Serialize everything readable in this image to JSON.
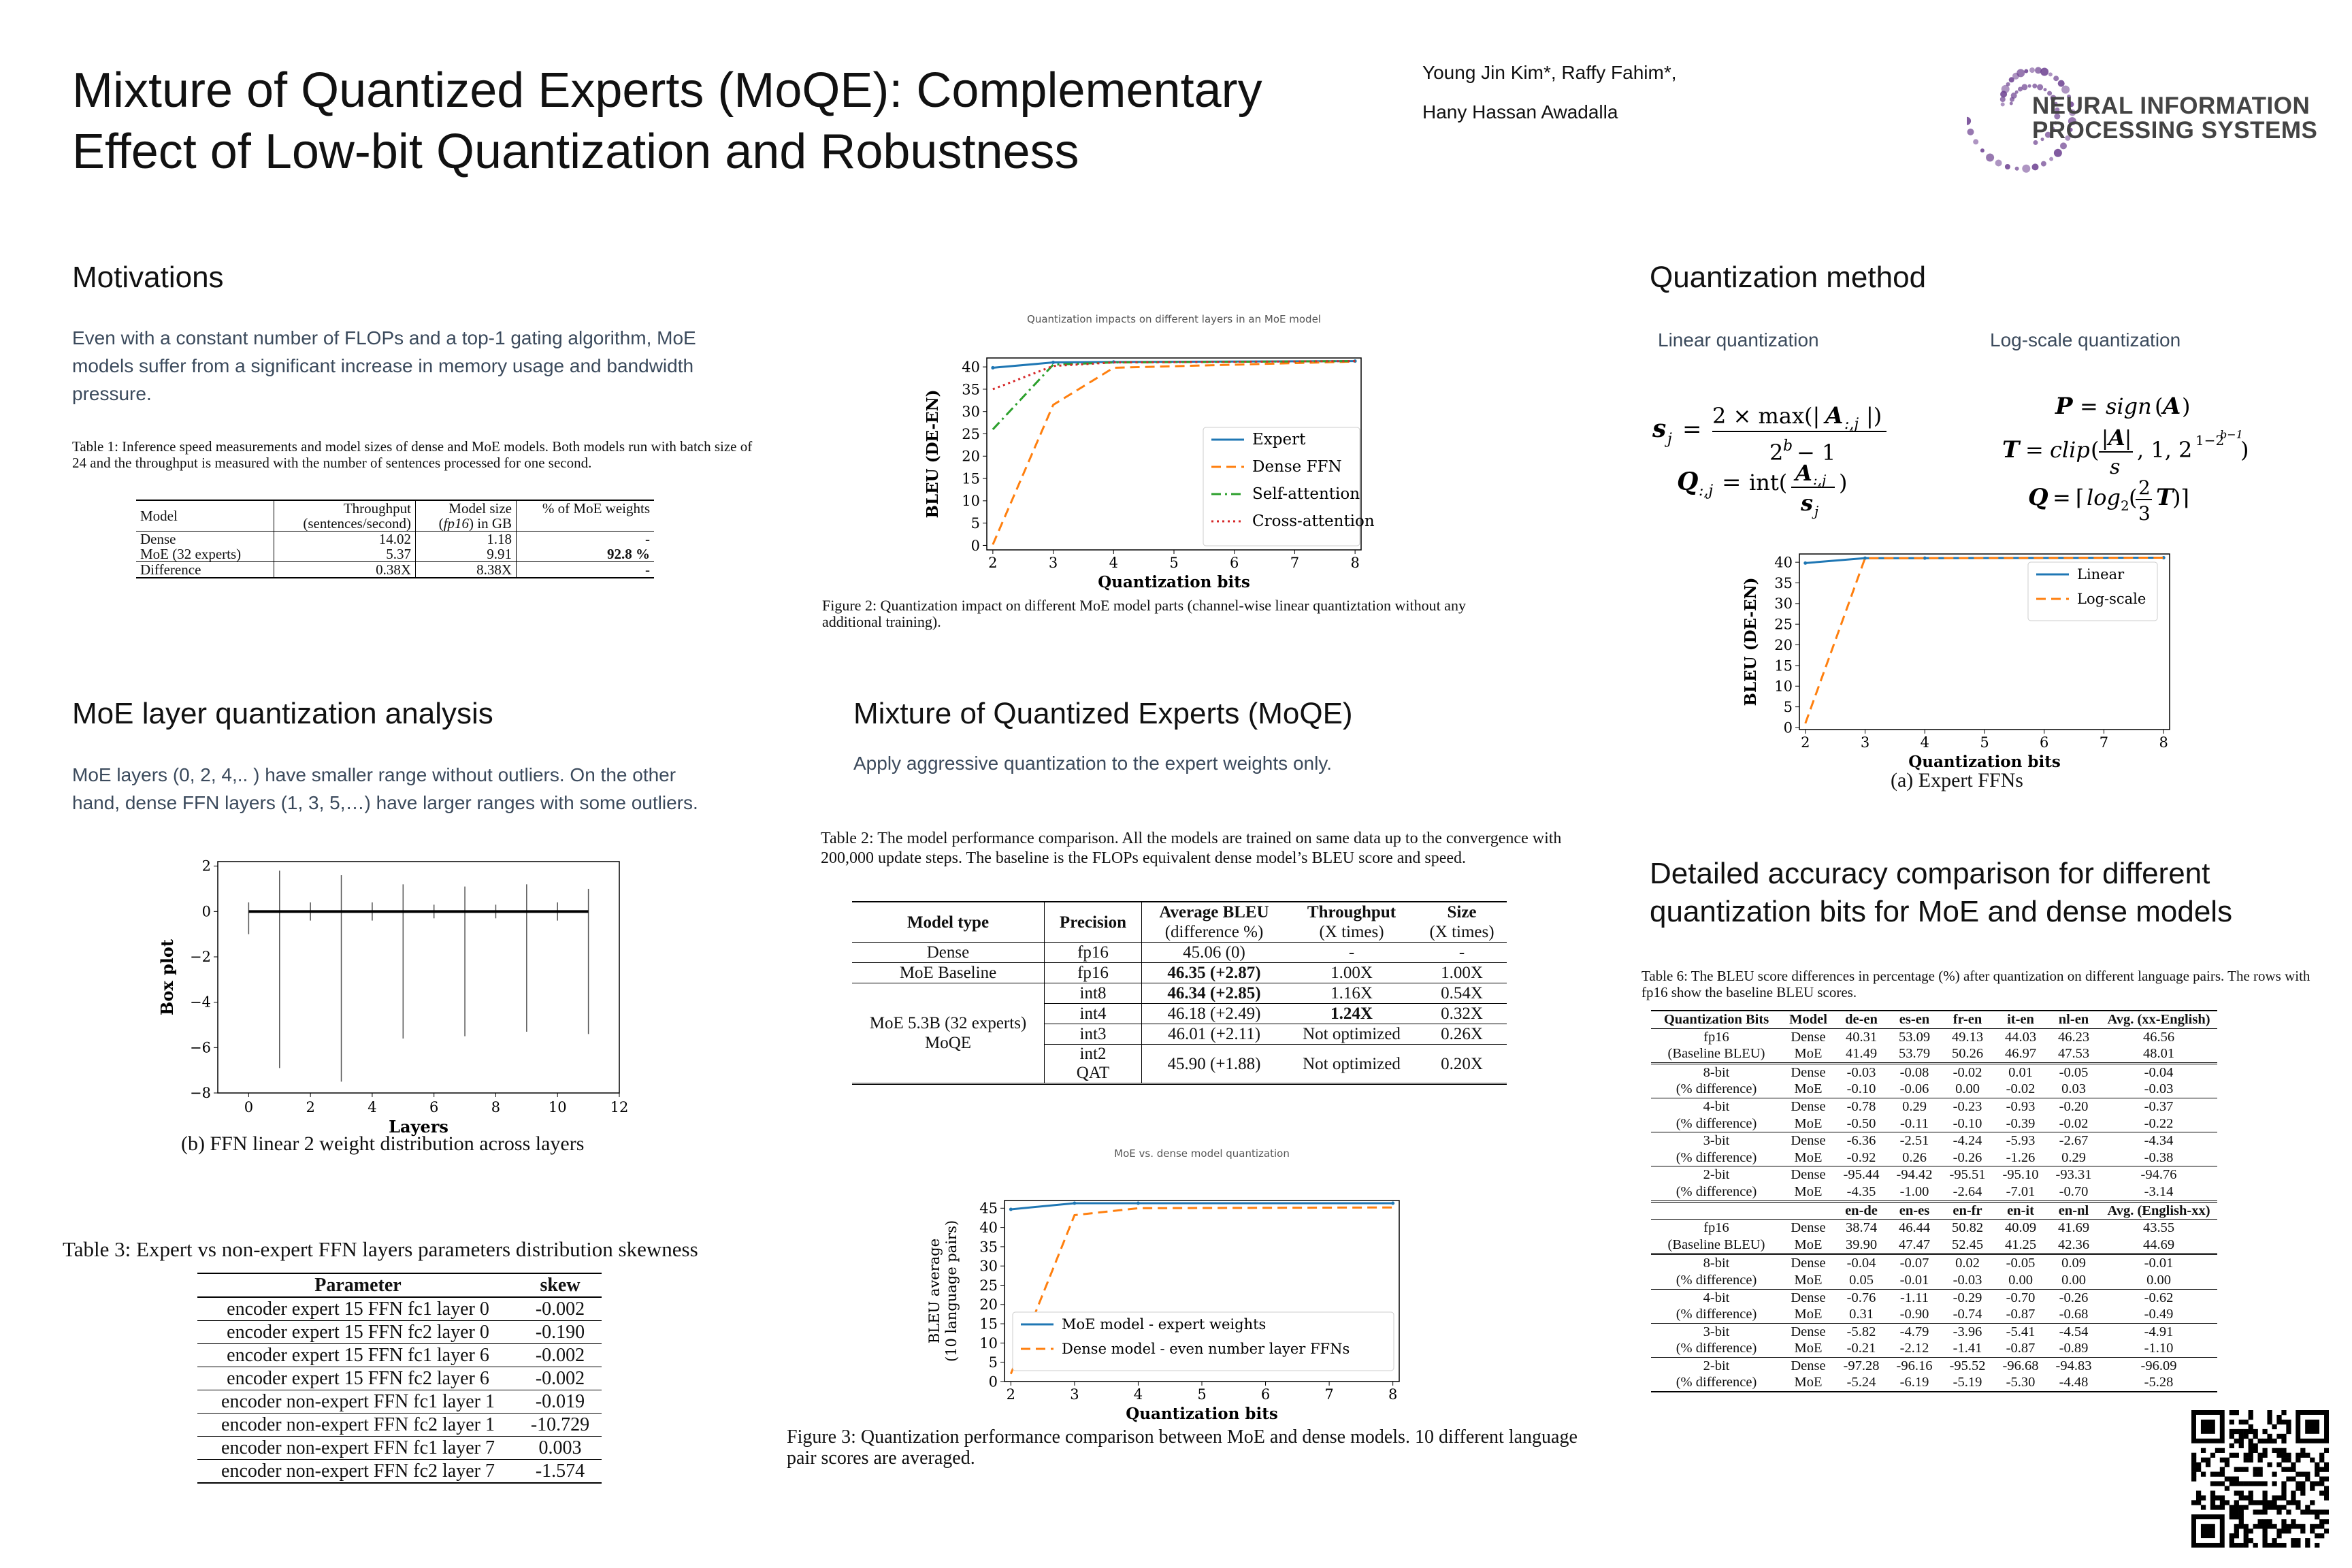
{
  "header": {
    "title_line1": "Mixture of Quantized Experts (MoQE): Complementary",
    "title_line2": "Effect of Low-bit Quantization and Robustness",
    "authors_line1": "Young Jin Kim*, Raffy Fahim*,",
    "authors_line2": "Hany Hassan Awadalla",
    "logo_line1": "NEURAL INFORMATION",
    "logo_line2": "PROCESSING SYSTEMS"
  },
  "motivations": {
    "heading": "Motivations",
    "text": "Even with a constant number of FLOPs and a top-1 gating algorithm, MoE models suffer from a significant increase in memory usage and bandwidth pressure.",
    "table_caption": "Table 1: Inference speed measurements and model sizes of dense and MoE models. Both models run with batch size of 24 and the throughput is measured with the number of sentences processed for one second.",
    "table": {
      "h_model": "Model",
      "h_thru1": "Throughput",
      "h_thru2": "(sentences/second)",
      "h_size1": "Model size",
      "h_size2_i": "fp16",
      "h_size2_rest": ") in GB",
      "h_pct": "% of MoE weights",
      "rows": [
        [
          "Dense",
          "14.02",
          "1.18",
          "-"
        ],
        [
          "MoE (32 experts)",
          "5.37",
          "9.91",
          "92.8 %"
        ],
        [
          "Difference",
          "0.38X",
          "8.38X",
          "-"
        ]
      ]
    }
  },
  "figure2": {
    "title": "Quantization  impacts  on different layers in an MoE model",
    "caption": "Figure 2: Quantization impact on different MoE model parts (channel-wise linear quantiztation without any additional training)."
  },
  "quant_method": {
    "heading": "Quantization method",
    "linear_label": "Linear quantization",
    "log_label": "Log-scale quantization",
    "fig_caption": "(a) Expert FFNs"
  },
  "moe_layer": {
    "heading": "MoE layer quantization analysis",
    "text": "MoE layers (0, 2, 4,.. ) have smaller range without outliers. On the other hand, dense FFN layers (1, 3, 5,…) have larger ranges with some outliers.",
    "fig_caption": "(b) FFN linear 2 weight distribution across layers"
  },
  "moqe": {
    "heading": "Mixture of Quantized Experts (MoQE)",
    "text": "Apply aggressive quantization to the expert weights only.",
    "table_caption": "Table 2:  The model performance comparison.  All the models are trained on same data up to the convergence with 200,000 update steps. The baseline is the FLOPs equivalent dense model’s BLEU score and speed.",
    "table": {
      "h_type": "Model type",
      "h_prec": "Precision",
      "h_bleu1": "Average BLEU",
      "h_bleu2": "(difference %)",
      "h_thru1": "Throughput",
      "h_thru2": "(X times)",
      "h_size1": "Size",
      "h_size2": "(X times)",
      "dense": [
        "Dense",
        "fp16",
        "45.06 (0)",
        "-",
        "-"
      ],
      "baseline": [
        "MoE Baseline",
        "fp16",
        "46.35 (+2.87)",
        "1.00X",
        "1.00X"
      ],
      "moqe_label1": "MoE 5.3B (32 experts)",
      "moqe_label2": "MoQE",
      "moqe_rows": [
        [
          "int8",
          "46.34 (+2.85)",
          "1.16X",
          "0.54X"
        ],
        [
          "int4",
          "46.18 (+2.49)",
          "1.24X",
          "0.32X"
        ],
        [
          "int3",
          "46.01 (+2.11)",
          "Not optimized",
          "0.26X"
        ]
      ],
      "int2_1": "int2",
      "int2_2": "QAT",
      "int2_bleu": "45.90 (+1.88)",
      "int2_thru": "Not optimized",
      "int2_size": "0.20X"
    }
  },
  "figure3": {
    "title": "MoE vs.  dense  model  quantization",
    "caption": "Figure 3:  Quantization performance comparison between MoE and dense models.  10 different language pair scores are averaged."
  },
  "table3": {
    "caption": "Table 3: Expert vs non-expert FFN layers parameters distribution skewness",
    "h_param": "Parameter",
    "h_skew": "skew",
    "rows": [
      [
        "encoder expert 15 FFN fc1 layer 0",
        "-0.002"
      ],
      [
        "encoder expert 15 FFN fc2 layer 0",
        "-0.190"
      ],
      [
        "encoder expert 15 FFN fc1 layer 6",
        "-0.002"
      ],
      [
        "encoder expert 15 FFN fc2 layer 6",
        "-0.002"
      ],
      [
        "encoder non-expert FFN fc1 layer 1",
        "-0.019"
      ],
      [
        "encoder non-expert FFN fc2 layer 1",
        "-10.729"
      ],
      [
        "encoder non-expert FFN fc1 layer 7",
        "0.003"
      ],
      [
        "encoder non-expert FFN fc2 layer 7",
        "-1.574"
      ]
    ]
  },
  "detailed": {
    "heading1": "Detailed accuracy comparison for different",
    "heading2": "quantization bits for MoE and dense models",
    "table_caption": "Table 6: The BLEU score differences in percentage (%) after quantization on different language pairs. The rows with fp16 show the baseline BLEU scores.",
    "header1": [
      "Quantization Bits",
      "Model",
      "de-en",
      "es-en",
      "fr-en",
      "it-en",
      "nl-en",
      "Avg. (xx-English)"
    ],
    "group1": [
      [
        [
          "fp16",
          "Dense",
          "40.31",
          "53.09",
          "49.13",
          "44.03",
          "46.23",
          "46.56"
        ],
        [
          "(Baseline BLEU)",
          "MoE",
          "41.49",
          "53.79",
          "50.26",
          "46.97",
          "47.53",
          "48.01"
        ]
      ],
      [
        [
          "8-bit",
          "Dense",
          "-0.03",
          "-0.08",
          "-0.02",
          "0.01",
          "-0.05",
          "-0.04"
        ],
        [
          "(% difference)",
          "MoE",
          "-0.10",
          "-0.06",
          "0.00",
          "-0.02",
          "0.03",
          "-0.03"
        ]
      ],
      [
        [
          "4-bit",
          "Dense",
          "-0.78",
          "0.29",
          "-0.23",
          "-0.93",
          "-0.20",
          "-0.37"
        ],
        [
          "(% difference)",
          "MoE",
          "-0.50",
          "-0.11",
          "-0.10",
          "-0.39",
          "-0.02",
          "-0.22"
        ]
      ],
      [
        [
          "3-bit",
          "Dense",
          "-6.36",
          "-2.51",
          "-4.24",
          "-5.93",
          "-2.67",
          "-4.34"
        ],
        [
          "(% difference)",
          "MoE",
          "-0.92",
          "0.26",
          "-0.26",
          "-1.26",
          "0.29",
          "-0.38"
        ]
      ],
      [
        [
          "2-bit",
          "Dense",
          "-95.44",
          "-94.42",
          "-95.51",
          "-95.10",
          "-93.31",
          "-94.76"
        ],
        [
          "(% difference)",
          "MoE",
          "-4.35",
          "-1.00",
          "-2.64",
          "-7.01",
          "-0.70",
          "-3.14"
        ]
      ]
    ],
    "header2": [
      "",
      "",
      "en-de",
      "en-es",
      "en-fr",
      "en-it",
      "en-nl",
      "Avg. (English-xx)"
    ],
    "group2": [
      [
        [
          "fp16",
          "Dense",
          "38.74",
          "46.44",
          "50.82",
          "40.09",
          "41.69",
          "43.55"
        ],
        [
          "(Baseline BLEU)",
          "MoE",
          "39.90",
          "47.47",
          "52.45",
          "41.25",
          "42.36",
          "44.69"
        ]
      ],
      [
        [
          "8-bit",
          "Dense",
          "-0.04",
          "-0.07",
          "0.02",
          "-0.05",
          "0.09",
          "-0.01"
        ],
        [
          "(% difference)",
          "MoE",
          "0.05",
          "-0.01",
          "-0.03",
          "0.00",
          "0.00",
          "0.00"
        ]
      ],
      [
        [
          "4-bit",
          "Dense",
          "-0.76",
          "-1.11",
          "-0.29",
          "-0.70",
          "-0.26",
          "-0.62"
        ],
        [
          "(% difference)",
          "MoE",
          "0.31",
          "-0.90",
          "-0.74",
          "-0.87",
          "-0.68",
          "-0.49"
        ]
      ],
      [
        [
          "3-bit",
          "Dense",
          "-5.82",
          "-4.79",
          "-3.96",
          "-5.41",
          "-4.54",
          "-4.91"
        ],
        [
          "(% difference)",
          "MoE",
          "-0.21",
          "-2.12",
          "-1.41",
          "-0.87",
          "-0.89",
          "-1.10"
        ]
      ],
      [
        [
          "2-bit",
          "Dense",
          "-97.28",
          "-96.16",
          "-95.52",
          "-96.68",
          "-94.83",
          "-96.09"
        ],
        [
          "(% difference)",
          "MoE",
          "-5.24",
          "-6.19",
          "-5.19",
          "-5.30",
          "-4.48",
          "-5.28"
        ]
      ]
    ]
  },
  "chart_data": [
    {
      "type": "line",
      "title": "Quantization  impacts  on different layers in an MoE model",
      "xlabel": "Quantization bits",
      "ylabel": "BLEU  (DE-EN)",
      "x": [
        2,
        3,
        4,
        8
      ],
      "xlim": [
        1.9,
        8.1
      ],
      "ylim": [
        -1,
        42
      ],
      "xticks": [
        2,
        3,
        4,
        5,
        6,
        7,
        8
      ],
      "yticks": [
        0,
        5,
        10,
        15,
        20,
        25,
        30,
        35,
        40
      ],
      "legend": "center-right",
      "series": [
        {
          "name": "Expert",
          "values": [
            39.8,
            41.0,
            41.1,
            41.3
          ],
          "color": "#1f77b4",
          "dash": "solid"
        },
        {
          "name": "Dense FFN",
          "values": [
            0.2,
            31.5,
            39.8,
            41.2
          ],
          "color": "#ff7f0e",
          "dash": "dashed"
        },
        {
          "name": "Self-attention",
          "values": [
            26.0,
            40.5,
            41.0,
            41.3
          ],
          "color": "#2ca02c",
          "dash": "dashdot"
        },
        {
          "name": "Cross-attention",
          "values": [
            35.0,
            40.2,
            41.0,
            41.3
          ],
          "color": "#d62728",
          "dash": "dotted"
        }
      ]
    },
    {
      "type": "line",
      "xlabel": "Quantization bits",
      "ylabel": "BLEU  (DE-EN)",
      "x": [
        2,
        3,
        4,
        8
      ],
      "xlim": [
        1.9,
        8.1
      ],
      "ylim": [
        -0.5,
        42
      ],
      "xticks": [
        2,
        3,
        4,
        5,
        6,
        7,
        8
      ],
      "yticks": [
        0,
        5,
        10,
        15,
        20,
        25,
        30,
        35,
        40
      ],
      "legend": "top-right",
      "series": [
        {
          "name": "Linear",
          "values": [
            39.8,
            41.0,
            41.0,
            41.1
          ],
          "color": "#1f77b4",
          "dash": "solid"
        },
        {
          "name": "Log-scale",
          "values": [
            1.0,
            41.0,
            41.0,
            41.1
          ],
          "color": "#ff7f0e",
          "dash": "dashed"
        }
      ]
    },
    {
      "type": "line",
      "title": "MoE vs.  dense  model  quantization",
      "xlabel": "Quantization bits",
      "ylabel": "BLEU  average (10 language pairs)",
      "x": [
        2,
        3,
        4,
        8
      ],
      "xlim": [
        1.9,
        8.1
      ],
      "ylim": [
        0,
        47
      ],
      "xticks": [
        2,
        3,
        4,
        5,
        6,
        7,
        8
      ],
      "yticks": [
        0,
        5,
        10,
        15,
        20,
        25,
        30,
        35,
        40,
        45
      ],
      "legend": "bottom-left",
      "series": [
        {
          "name": "MoE model - expert weights",
          "values": [
            44.7,
            46.3,
            46.3,
            46.3
          ],
          "color": "#1f77b4",
          "dash": "solid"
        },
        {
          "name": "Dense model - even number layer FFNs",
          "values": [
            2.0,
            43.2,
            45.0,
            45.2
          ],
          "color": "#ff7f0e",
          "dash": "dashed"
        }
      ]
    },
    {
      "type": "box",
      "xlabel": "Layers",
      "ylabel": "Box plot",
      "xlim": [
        -1,
        12
      ],
      "ylim": [
        -8,
        2.2
      ],
      "xticks": [
        0,
        2,
        4,
        6,
        8,
        10,
        12
      ],
      "yticks": [
        -8,
        -6,
        -4,
        -2,
        0,
        2
      ],
      "layers": [
        0,
        1,
        2,
        3,
        4,
        5,
        6,
        7,
        8,
        9,
        10,
        11
      ],
      "whisker_min": [
        -1.0,
        -6.9,
        -0.4,
        -7.5,
        -0.4,
        -5.6,
        -0.3,
        -5.5,
        -0.3,
        -5.3,
        -0.4,
        -5.4
      ],
      "whisker_max": [
        0.4,
        1.8,
        0.4,
        1.6,
        0.4,
        1.2,
        0.3,
        1.1,
        0.3,
        1.2,
        0.4,
        1.0
      ]
    }
  ]
}
